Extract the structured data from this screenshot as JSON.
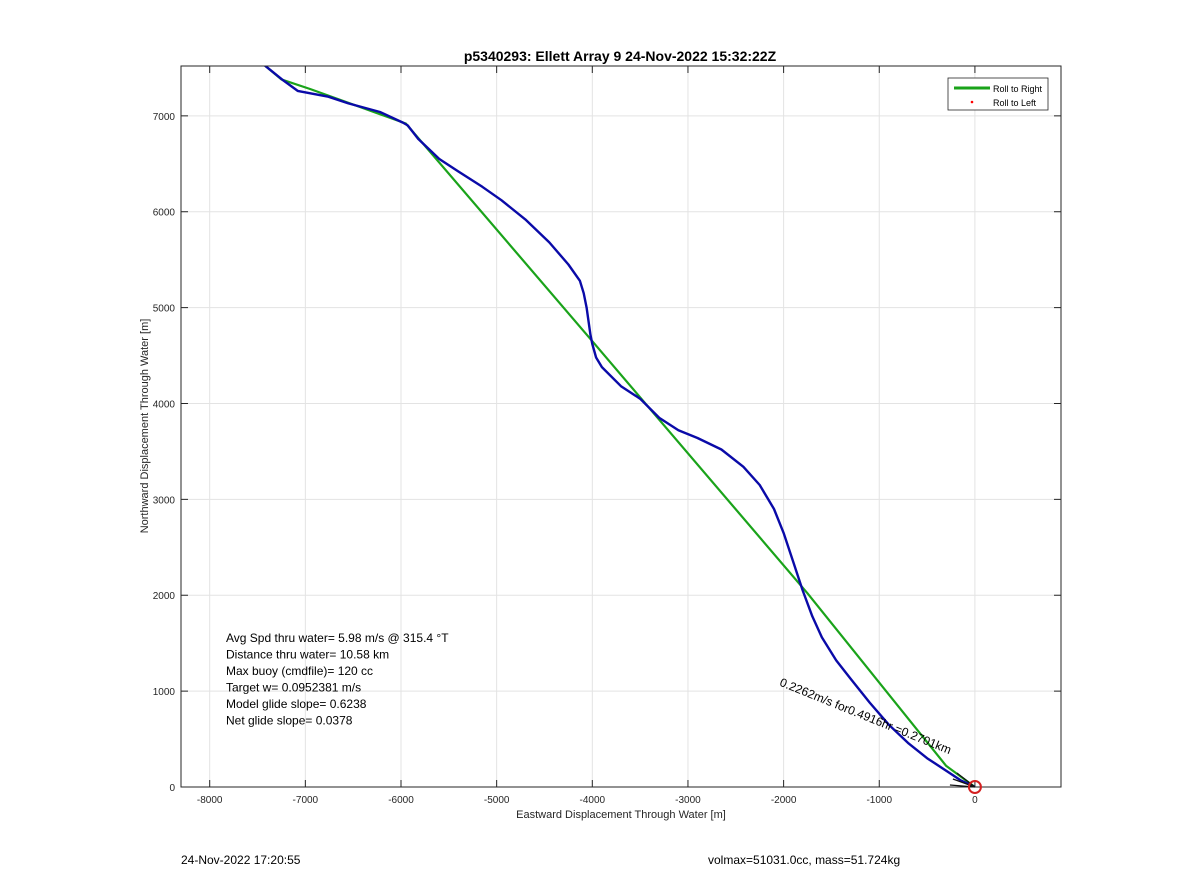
{
  "chart_data": {
    "type": "line",
    "title": "p5340293: Ellett Array 9 24-Nov-2022 15:32:22Z",
    "xlabel": "Eastward Displacement Through Water [m]",
    "ylabel": "Northward Displacement Through Water [m]",
    "xlim": [
      -8300,
      900
    ],
    "ylim": [
      0,
      7520
    ],
    "xticks": [
      -8000,
      -7000,
      -6000,
      -5000,
      -4000,
      -3000,
      -2000,
      -1000,
      0
    ],
    "yticks": [
      0,
      1000,
      2000,
      3000,
      4000,
      5000,
      6000,
      7000
    ],
    "grid": true,
    "legend_position": "top-right",
    "legend": [
      "Roll to Right",
      "Roll to Left"
    ],
    "series": [
      {
        "name": "Roll to Right",
        "color": "#1aa31a",
        "x": [
          -7430,
          -7250,
          -6950,
          -5950,
          -4000,
          -3300,
          -1750,
          -300,
          0
        ],
        "y": [
          7530,
          7380,
          7280,
          6920,
          4650,
          3830,
          2020,
          220,
          0
        ]
      },
      {
        "color": "#0a0aa8",
        "x": [
          -7430,
          -7230,
          -7080,
          -6760,
          -6550,
          -6220,
          -5980,
          -5930,
          -5820,
          -5600,
          -5400,
          -5150,
          -4950,
          -4700,
          -4450,
          -4250,
          -4130,
          -4090,
          -4060,
          -4020,
          -4000,
          -3960,
          -3900,
          -3700,
          -3500,
          -3300,
          -3100,
          -2900,
          -2650,
          -2420,
          -2250,
          -2100,
          -2000,
          -1900,
          -1800,
          -1700,
          -1600,
          -1450,
          -1300,
          -1100,
          -900,
          -700,
          -500,
          -300,
          -150,
          0
        ],
        "y": [
          7530,
          7370,
          7260,
          7200,
          7130,
          7040,
          6930,
          6900,
          6760,
          6550,
          6420,
          6260,
          6120,
          5920,
          5680,
          5450,
          5280,
          5150,
          5000,
          4720,
          4620,
          4480,
          4380,
          4180,
          4050,
          3850,
          3720,
          3640,
          3520,
          3340,
          3150,
          2900,
          2650,
          2350,
          2050,
          1780,
          1560,
          1320,
          1130,
          880,
          650,
          460,
          300,
          170,
          70,
          0
        ]
      },
      {
        "name": "Roll to Left",
        "color": "#ff0000",
        "x": [],
        "y": []
      }
    ],
    "annotations": [
      {
        "text": "Avg Spd thru water=  5.98 m/s @ 315.4 °T"
      },
      {
        "text": "Distance thru water= 10.58 km"
      },
      {
        "text": "Max buoy (cmdfile)= 120 cc"
      },
      {
        "text": "Target w= 0.0952381 m/s"
      },
      {
        "text": "Model glide slope= 0.6238"
      },
      {
        "text": "Net glide slope= 0.0378"
      }
    ],
    "current_label": {
      "text": "0.2262m/s for0.4916hr =0.2701km",
      "x": -2050,
      "y": 1060,
      "angle_deg": 22
    },
    "end_marker": {
      "x": 0,
      "y": 0,
      "color": "#d42020"
    }
  },
  "footer": {
    "left": "24-Nov-2022 17:20:55",
    "right": "volmax=51031.0cc, mass=51.724kg"
  }
}
